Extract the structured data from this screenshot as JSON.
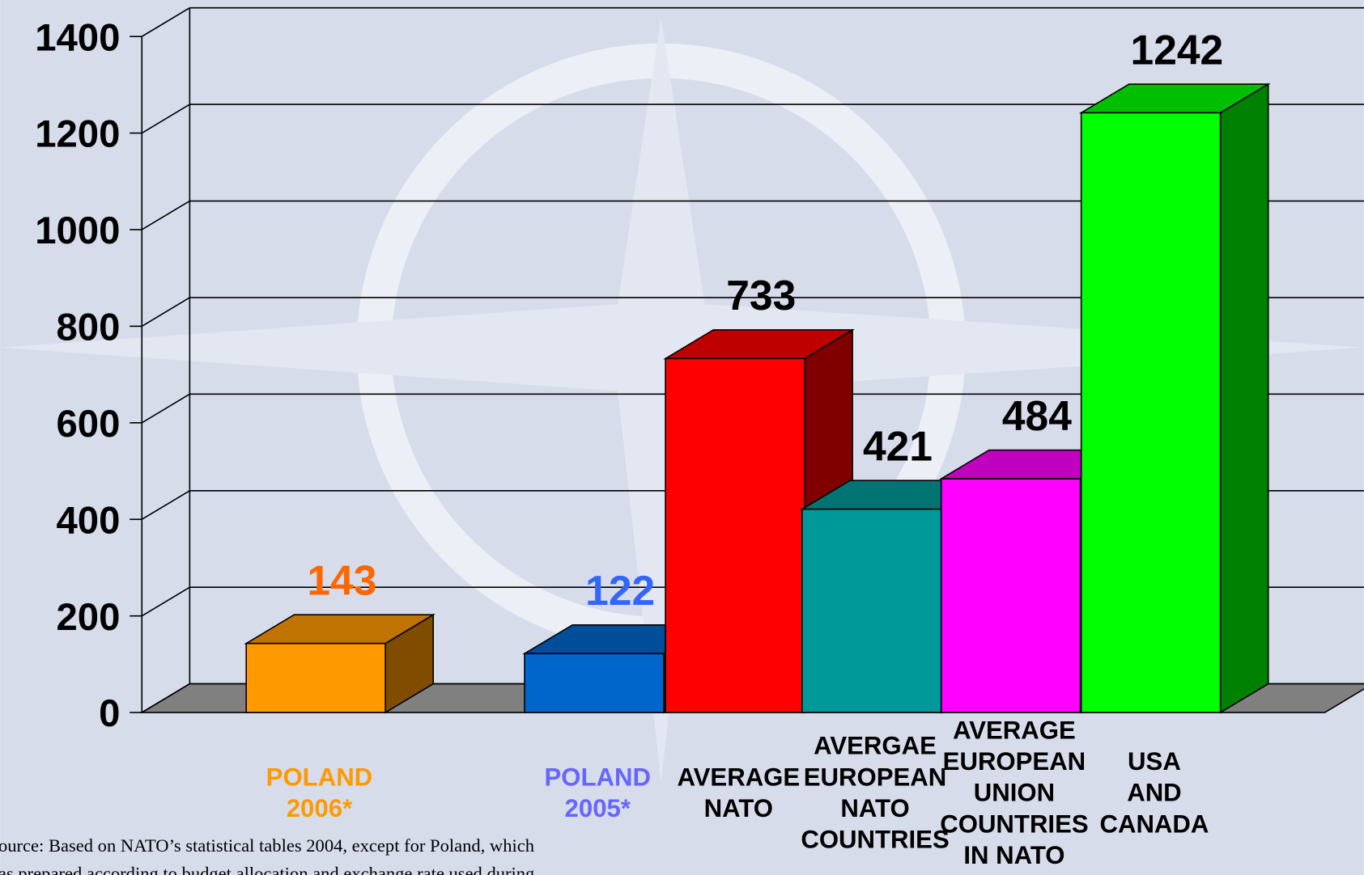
{
  "chart_data": {
    "type": "bar3d",
    "categories": [
      [
        "POLAND",
        "2006*"
      ],
      [
        "POLAND",
        "2005*"
      ],
      [
        "AVERAGE",
        "NATO"
      ],
      [
        "AVERGAE",
        "EUROPEAN",
        "NATO",
        "COUNTRIES"
      ],
      [
        "AVERAGE",
        "EUROPEAN",
        "UNION",
        "COUNTRIES",
        "IN NATO"
      ],
      [
        "USA",
        "AND",
        "CANADA"
      ]
    ],
    "values": [
      143,
      122,
      733,
      421,
      484,
      1242
    ],
    "colors": [
      "#ff9900",
      "#0066cc",
      "#ff0000",
      "#009999",
      "#ff00ff",
      "#00ff00"
    ],
    "value_label_colors": [
      "#ff6600",
      "#3366ff",
      "#000000",
      "#000000",
      "#000000",
      "#000000"
    ],
    "category_label_colors": [
      "#ff9900",
      "#6666ff",
      "#000000",
      "#000000",
      "#000000",
      "#000000"
    ],
    "ylim": [
      0,
      1400
    ],
    "yticks": [
      0,
      200,
      400,
      600,
      800,
      1000,
      1200,
      1400
    ],
    "grid": true,
    "note": [
      "ource: Based on NATO’s statistical tables 2004, except for Poland, which",
      "as prepared according to budget allocation and exchange rate used during"
    ]
  }
}
